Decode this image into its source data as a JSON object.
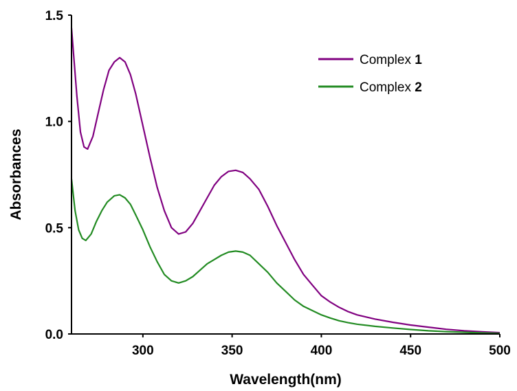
{
  "chart_data": {
    "type": "line",
    "title": "",
    "xlabel": "Wavelength(nm)",
    "ylabel": "Absorbances",
    "xlim": [
      260,
      500
    ],
    "ylim": [
      0,
      1.5
    ],
    "x_ticks": [
      "300",
      "350",
      "400",
      "450",
      "500"
    ],
    "y_ticks": [
      "0.0",
      "0.5",
      "1.0",
      "1.5"
    ],
    "grid": false,
    "legend_position": "top-right",
    "series": [
      {
        "name_prefix": "Complex ",
        "name_number": "1",
        "color": "#800080",
        "points": [
          [
            260,
            1.44
          ],
          [
            263,
            1.12
          ],
          [
            265,
            0.95
          ],
          [
            267,
            0.88
          ],
          [
            269,
            0.87
          ],
          [
            272,
            0.93
          ],
          [
            275,
            1.04
          ],
          [
            278,
            1.15
          ],
          [
            281,
            1.24
          ],
          [
            284,
            1.28
          ],
          [
            287,
            1.3
          ],
          [
            290,
            1.28
          ],
          [
            293,
            1.22
          ],
          [
            296,
            1.13
          ],
          [
            300,
            0.98
          ],
          [
            304,
            0.83
          ],
          [
            308,
            0.69
          ],
          [
            312,
            0.58
          ],
          [
            316,
            0.5
          ],
          [
            320,
            0.47
          ],
          [
            324,
            0.48
          ],
          [
            328,
            0.52
          ],
          [
            332,
            0.58
          ],
          [
            336,
            0.64
          ],
          [
            340,
            0.7
          ],
          [
            344,
            0.74
          ],
          [
            348,
            0.765
          ],
          [
            352,
            0.77
          ],
          [
            356,
            0.76
          ],
          [
            360,
            0.73
          ],
          [
            365,
            0.68
          ],
          [
            370,
            0.6
          ],
          [
            375,
            0.51
          ],
          [
            380,
            0.43
          ],
          [
            385,
            0.35
          ],
          [
            390,
            0.28
          ],
          [
            395,
            0.23
          ],
          [
            400,
            0.18
          ],
          [
            405,
            0.15
          ],
          [
            410,
            0.125
          ],
          [
            415,
            0.105
          ],
          [
            420,
            0.09
          ],
          [
            430,
            0.07
          ],
          [
            440,
            0.055
          ],
          [
            450,
            0.042
          ],
          [
            460,
            0.032
          ],
          [
            470,
            0.022
          ],
          [
            480,
            0.015
          ],
          [
            490,
            0.01
          ],
          [
            500,
            0.006
          ]
        ]
      },
      {
        "name_prefix": "Complex ",
        "name_number": "2",
        "color": "#228B22",
        "points": [
          [
            260,
            0.73
          ],
          [
            262,
            0.58
          ],
          [
            264,
            0.49
          ],
          [
            266,
            0.45
          ],
          [
            268,
            0.44
          ],
          [
            271,
            0.47
          ],
          [
            274,
            0.53
          ],
          [
            277,
            0.58
          ],
          [
            280,
            0.62
          ],
          [
            284,
            0.65
          ],
          [
            287,
            0.655
          ],
          [
            290,
            0.64
          ],
          [
            293,
            0.61
          ],
          [
            296,
            0.56
          ],
          [
            300,
            0.49
          ],
          [
            304,
            0.41
          ],
          [
            308,
            0.34
          ],
          [
            312,
            0.28
          ],
          [
            316,
            0.25
          ],
          [
            320,
            0.24
          ],
          [
            324,
            0.25
          ],
          [
            328,
            0.27
          ],
          [
            332,
            0.3
          ],
          [
            336,
            0.33
          ],
          [
            340,
            0.35
          ],
          [
            344,
            0.37
          ],
          [
            348,
            0.385
          ],
          [
            352,
            0.39
          ],
          [
            356,
            0.385
          ],
          [
            360,
            0.37
          ],
          [
            365,
            0.33
          ],
          [
            370,
            0.29
          ],
          [
            375,
            0.24
          ],
          [
            380,
            0.2
          ],
          [
            385,
            0.16
          ],
          [
            390,
            0.13
          ],
          [
            395,
            0.11
          ],
          [
            400,
            0.09
          ],
          [
            405,
            0.075
          ],
          [
            410,
            0.062
          ],
          [
            415,
            0.053
          ],
          [
            420,
            0.046
          ],
          [
            430,
            0.036
          ],
          [
            440,
            0.028
          ],
          [
            450,
            0.021
          ],
          [
            460,
            0.015
          ],
          [
            470,
            0.011
          ],
          [
            480,
            0.008
          ],
          [
            490,
            0.005
          ],
          [
            500,
            0.003
          ]
        ]
      }
    ]
  }
}
